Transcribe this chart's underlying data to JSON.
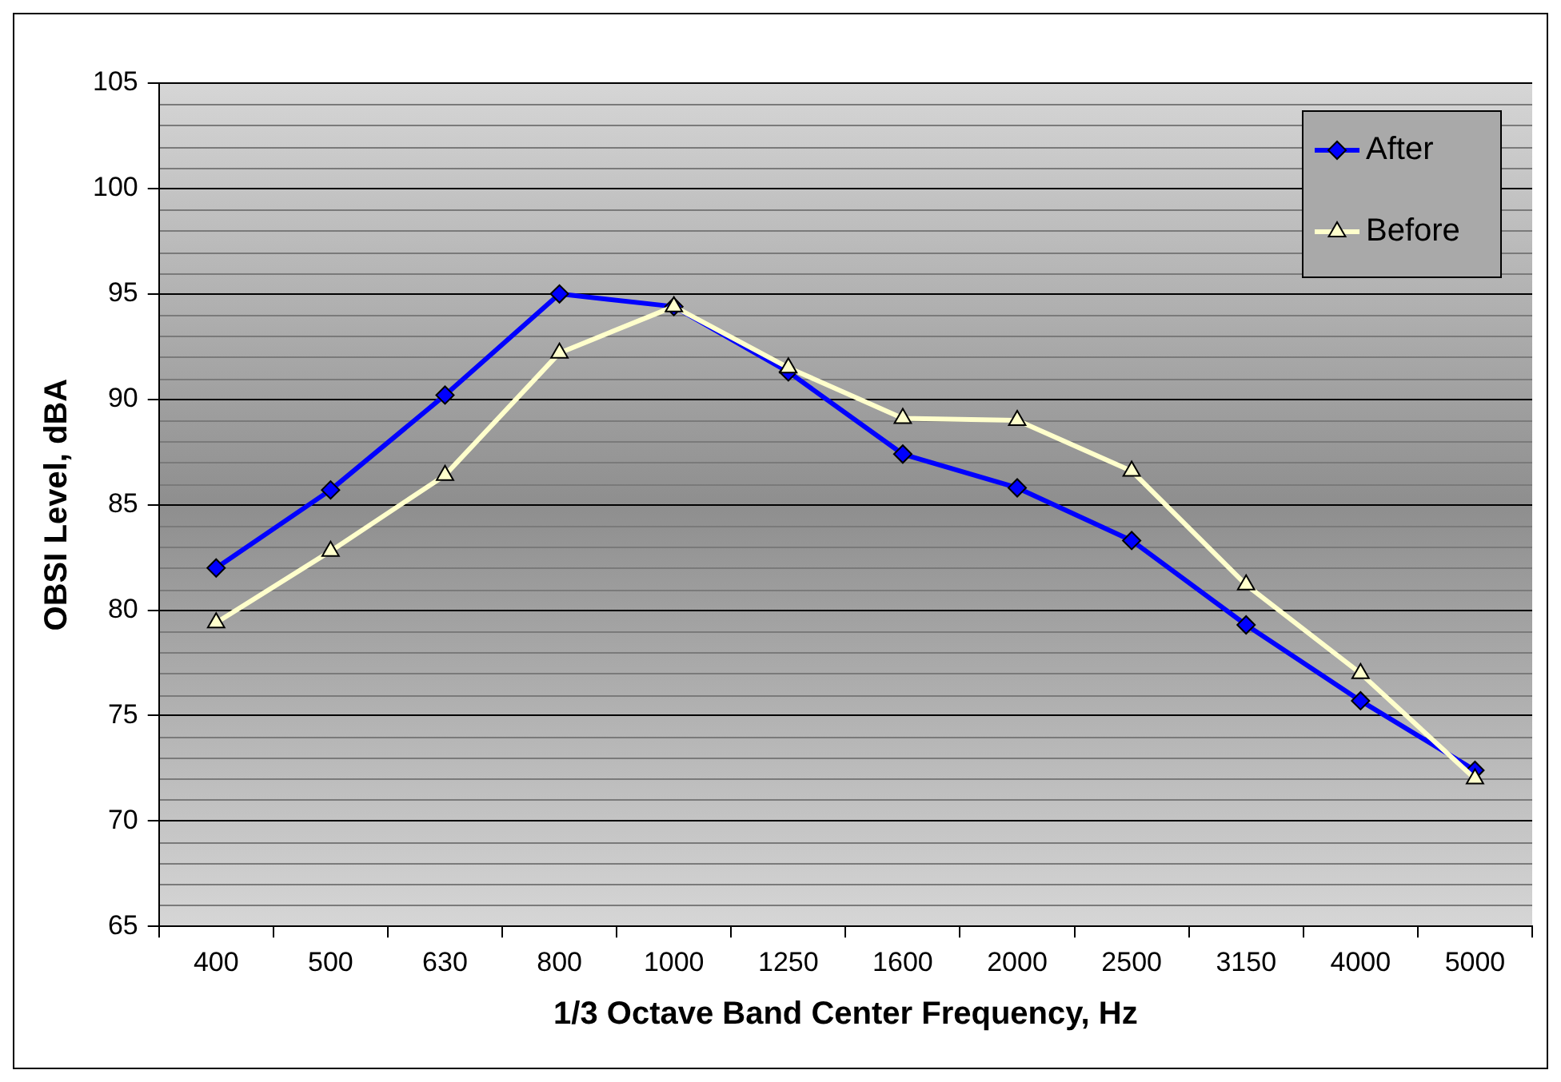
{
  "chart_data": {
    "type": "line",
    "xlabel": "1/3 Octave Band Center Frequency, Hz",
    "ylabel": "OBSI Level, dBA",
    "categories": [
      "400",
      "500",
      "630",
      "800",
      "1000",
      "1250",
      "1600",
      "2000",
      "2500",
      "3150",
      "4000",
      "5000"
    ],
    "series": [
      {
        "name": "After",
        "color": "#0000ff",
        "marker": "diamond",
        "values": [
          82.0,
          85.7,
          90.2,
          95.0,
          94.4,
          91.3,
          87.4,
          85.8,
          83.3,
          79.3,
          75.7,
          72.4
        ]
      },
      {
        "name": "Before",
        "color": "#ffffcc",
        "marker": "triangle",
        "values": [
          79.4,
          82.8,
          86.4,
          92.2,
          94.4,
          91.5,
          89.1,
          89.0,
          86.6,
          81.2,
          77.0,
          72.0
        ]
      }
    ],
    "ylim": [
      65,
      105
    ],
    "yticks": [
      65,
      70,
      75,
      80,
      85,
      90,
      95,
      100,
      105
    ],
    "grid": "y",
    "legend": "top right",
    "line_style": "solid"
  }
}
